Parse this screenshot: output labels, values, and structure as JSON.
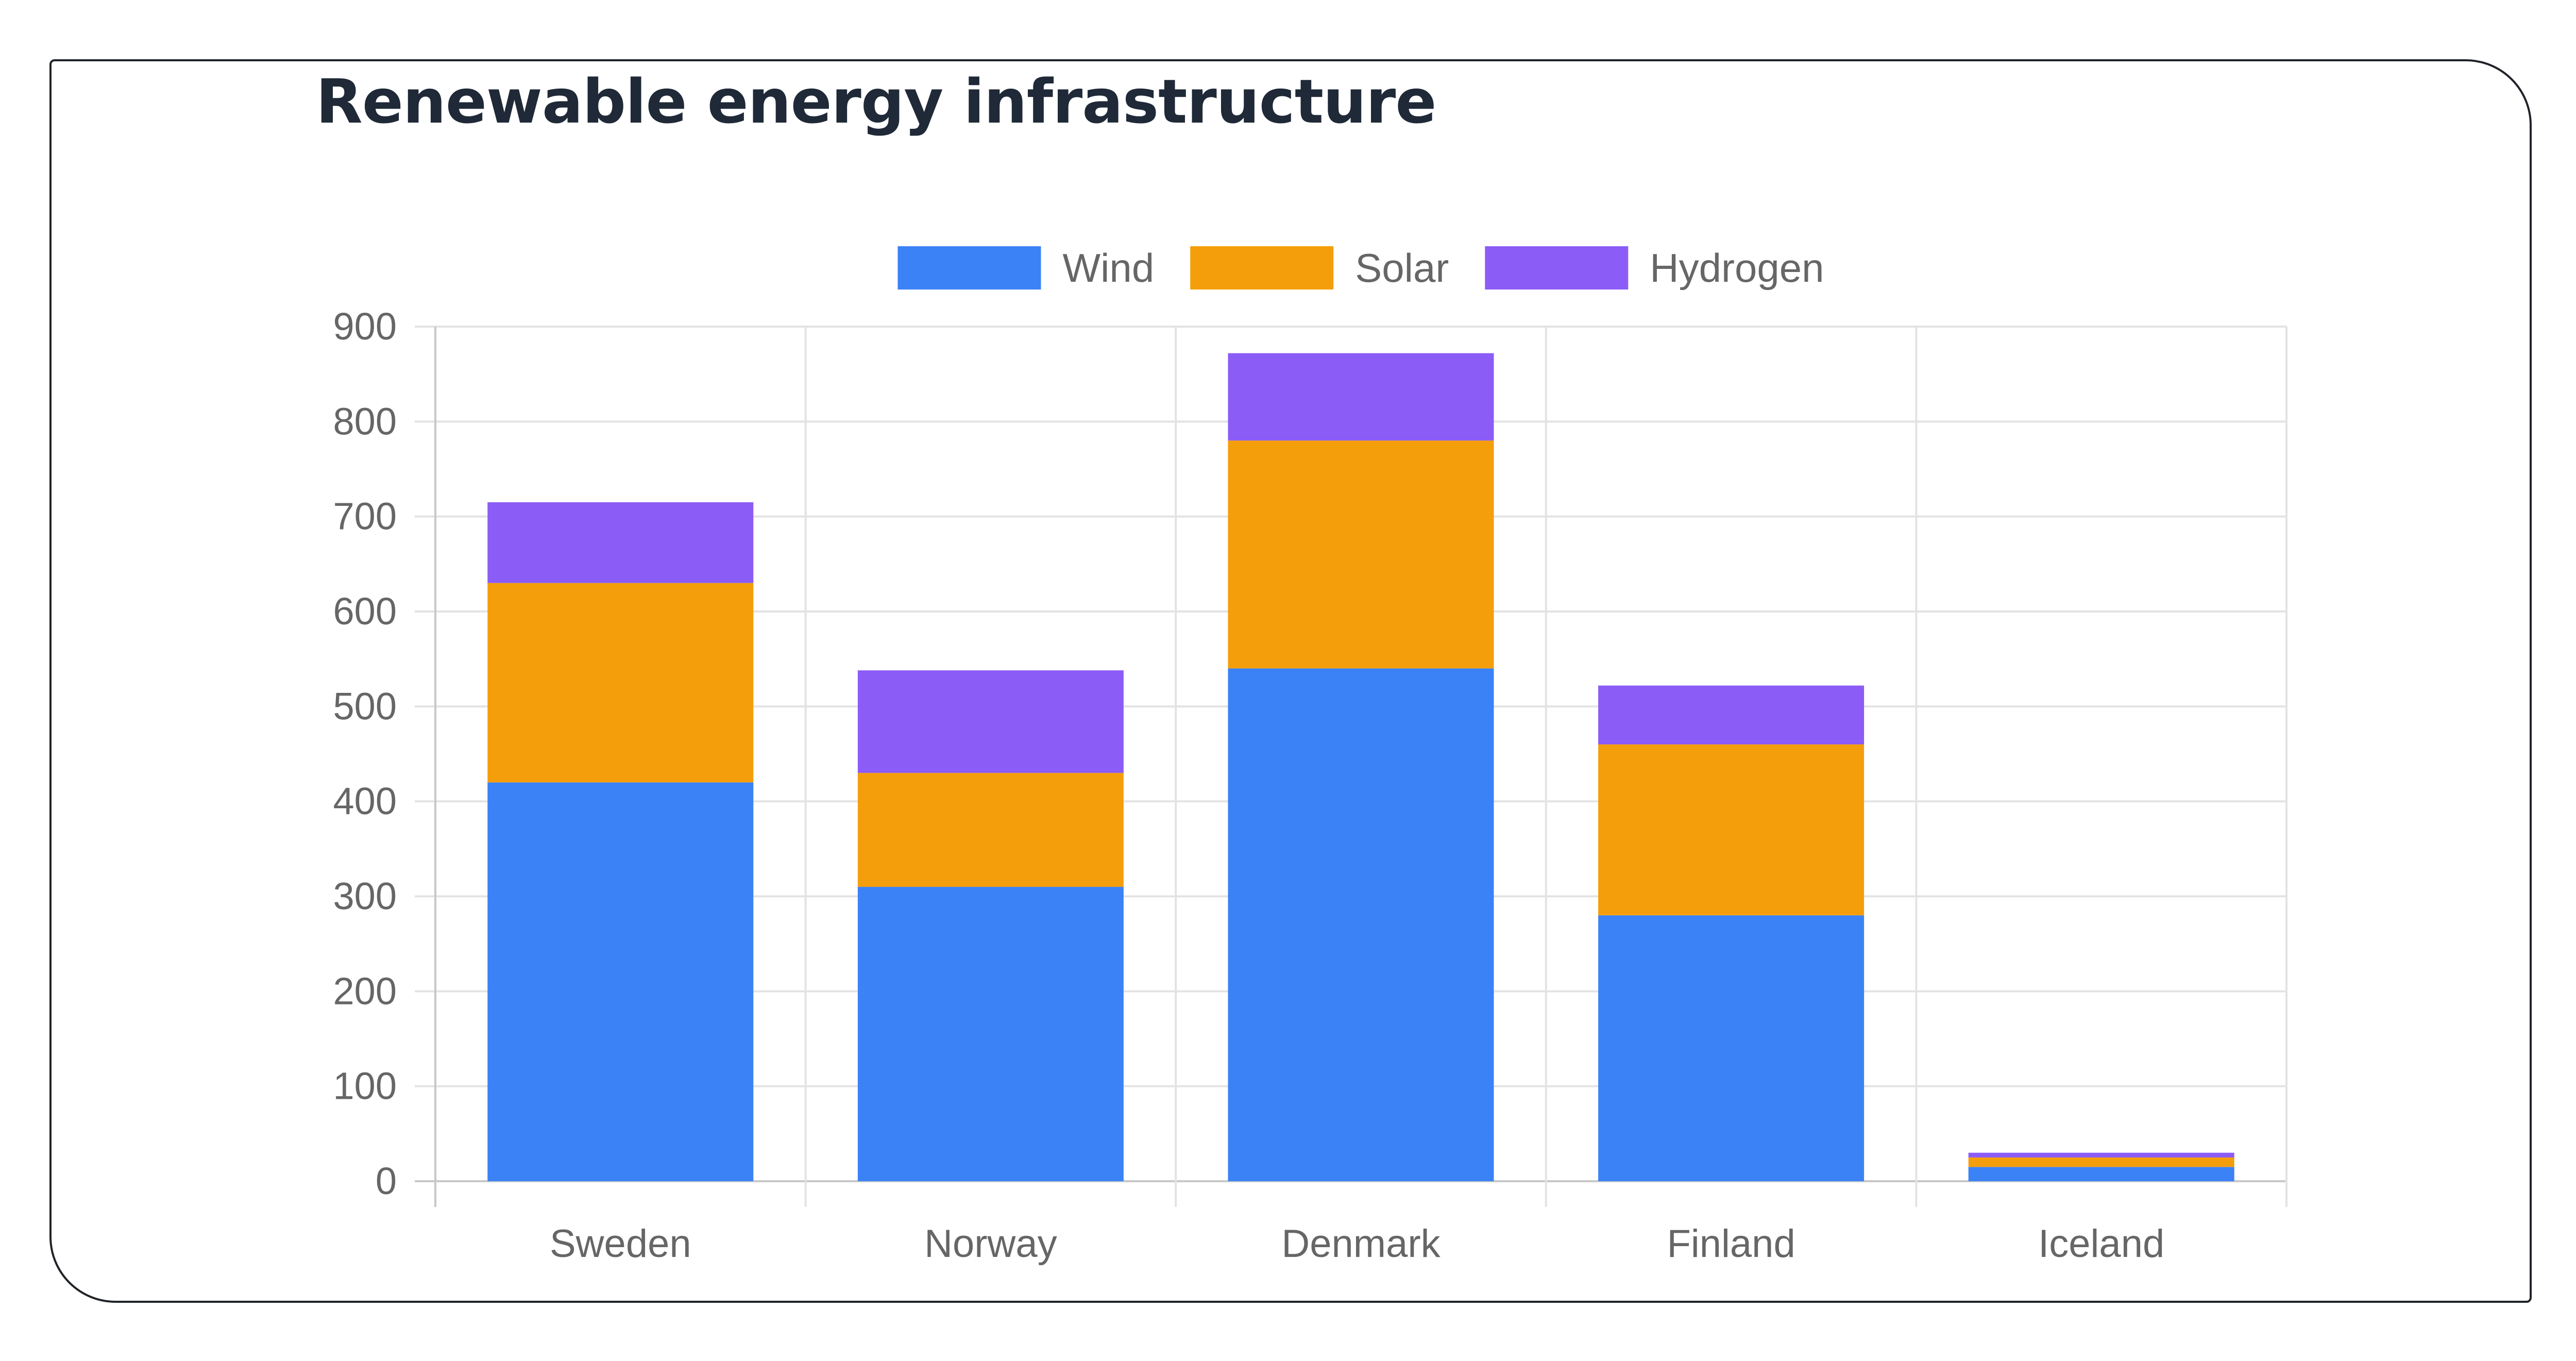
{
  "chart_data": {
    "type": "bar",
    "stacked": true,
    "title": "Renewable energy infrastructure",
    "categories": [
      "Sweden",
      "Norway",
      "Denmark",
      "Finland",
      "Iceland"
    ],
    "series": [
      {
        "name": "Wind",
        "color": "#3b82f6",
        "values": [
          420,
          310,
          540,
          280,
          15
        ]
      },
      {
        "name": "Solar",
        "color": "#f59e0b",
        "values": [
          210,
          120,
          240,
          180,
          10
        ]
      },
      {
        "name": "Hydrogen",
        "color": "#8b5cf6",
        "values": [
          85,
          108,
          92,
          62,
          5
        ]
      }
    ],
    "yticks": [
      "0",
      "100",
      "200",
      "300",
      "400",
      "500",
      "600",
      "700",
      "800",
      "900"
    ],
    "ylim": [
      0,
      900
    ],
    "legend_position": "top",
    "grid": true
  }
}
